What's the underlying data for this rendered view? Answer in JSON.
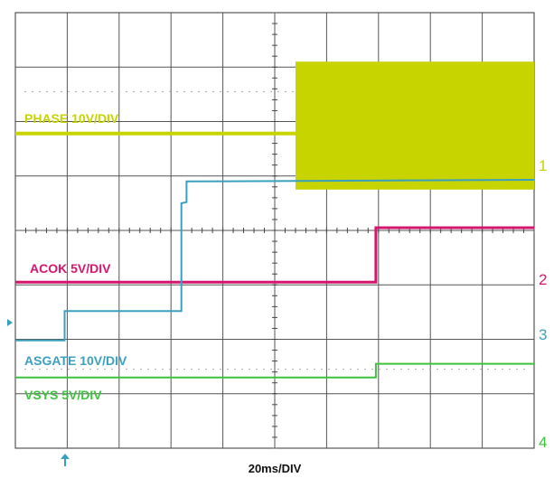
{
  "chart_data": {
    "type": "line",
    "title": "",
    "xlabel": "20ms/DIV",
    "ylabel": "",
    "x_unit": "ms",
    "xlim": [
      0,
      200
    ],
    "ylim": [
      -4,
      4
    ],
    "y_unit": "div",
    "grid": true,
    "legend": "inline labels on traces",
    "series": [
      {
        "name": "PHASE 10V/DIV",
        "color": "#c8d400",
        "channel_marker": "1",
        "points": [
          [
            0,
            1.78
          ],
          [
            108,
            1.78
          ],
          [
            108,
            3.1
          ],
          [
            200,
            3.1
          ],
          [
            200,
            0.75
          ],
          [
            108,
            0.75
          ],
          [
            108,
            1.78
          ]
        ],
        "note_fill_region": [
          108,
          200,
          0.75,
          3.1
        ]
      },
      {
        "name": "ACOK 5V/DIV",
        "color": "#d6156e",
        "channel_marker": "2",
        "points": [
          [
            0,
            -0.95
          ],
          [
            139,
            -0.95
          ],
          [
            139,
            0.05
          ],
          [
            200,
            0.05
          ]
        ]
      },
      {
        "name": "ASGATE 10V/DIV",
        "color": "#3aa0bf",
        "channel_marker": "3",
        "points": [
          [
            0,
            -2.02
          ],
          [
            19,
            -2.02
          ],
          [
            19,
            -1.48
          ],
          [
            64,
            -1.48
          ],
          [
            64,
            0.5
          ],
          [
            66,
            0.52
          ],
          [
            66,
            0.9
          ],
          [
            200,
            0.93
          ]
        ]
      },
      {
        "name": "VSYS 5V/DIV",
        "color": "#3ec23e",
        "channel_marker": "4",
        "points": [
          [
            0,
            -2.7
          ],
          [
            139,
            -2.7
          ],
          [
            139,
            -2.45
          ],
          [
            200,
            -2.45
          ]
        ]
      }
    ]
  }
}
